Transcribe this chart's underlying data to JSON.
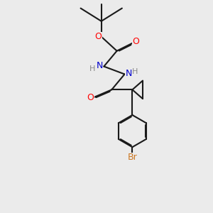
{
  "background_color": "#ebebeb",
  "bond_color": "#1a1a1a",
  "bond_width": 1.5,
  "dbo": 0.035,
  "colors": {
    "O": "#ff0000",
    "N": "#0000cc",
    "Br": "#cc7722",
    "H": "#888888"
  },
  "figsize": [
    3.0,
    3.0
  ],
  "dpi": 100
}
